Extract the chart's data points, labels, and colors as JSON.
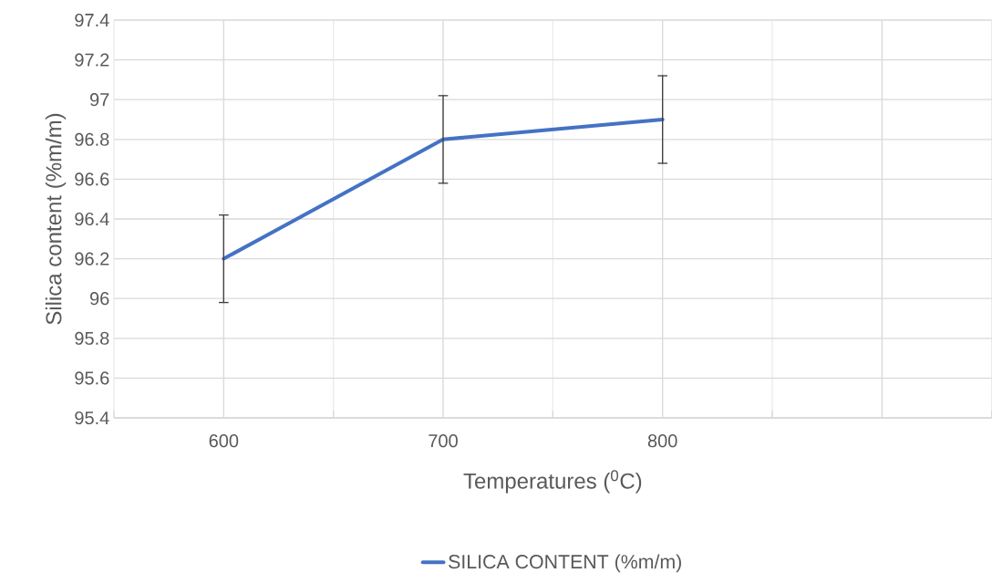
{
  "chart_data": {
    "type": "line",
    "xlabel": "Temperatures ($^{0}$C)",
    "ylabel": "Silica content (%m/m)",
    "categories": [
      "600",
      "700",
      "800",
      null
    ],
    "series": [
      {
        "name": "SILICA CONTENT (%m/m)",
        "color": "#4472c4",
        "values": [
          96.2,
          96.8,
          96.9,
          null
        ],
        "errors": [
          0.22,
          0.22,
          0.22,
          null
        ]
      }
    ],
    "ylim": [
      95.4,
      97.4
    ],
    "yticks": [
      95.4,
      95.6,
      95.8,
      96,
      96.2,
      96.4,
      96.6,
      96.8,
      97,
      97.2,
      97.4
    ],
    "grid": true,
    "legend": "bottom",
    "marker": "none",
    "line_style": "solid"
  }
}
